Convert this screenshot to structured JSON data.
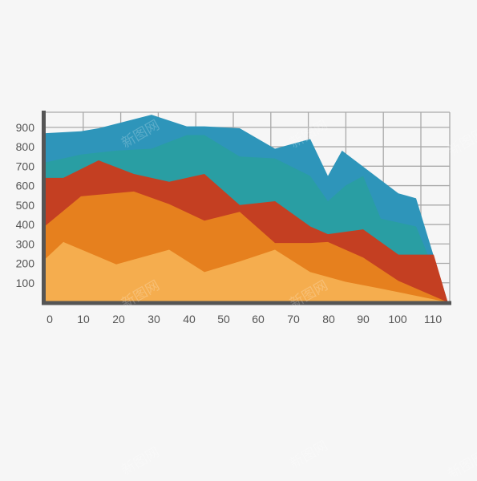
{
  "chart_data": {
    "type": "area",
    "stacked": false,
    "title": "",
    "xlabel": "",
    "ylabel": "",
    "xlim": [
      0,
      115
    ],
    "ylim": [
      0,
      1000
    ],
    "x_ticks": [
      0,
      10,
      20,
      30,
      40,
      50,
      60,
      70,
      80,
      90,
      100,
      110
    ],
    "x_tick_labels": [
      "0",
      "10",
      "20",
      "30",
      "40",
      "50",
      "60",
      "70",
      "80",
      "90",
      "100",
      "110"
    ],
    "y_ticks": [
      100,
      200,
      300,
      400,
      500,
      600,
      700,
      800,
      900
    ],
    "y_tick_labels": [
      "100",
      "200",
      "300",
      "400",
      "500",
      "600",
      "700",
      "800",
      "900"
    ],
    "grid": true,
    "legend": "none",
    "series": [
      {
        "color": "#2e95ba",
        "x": [
          0,
          10,
          15,
          30,
          40,
          45,
          55,
          65,
          75,
          80,
          84,
          100,
          105,
          114
        ],
        "y": [
          870,
          880,
          895,
          965,
          905,
          905,
          895,
          790,
          840,
          650,
          780,
          560,
          535,
          0
        ]
      },
      {
        "color": "#299ea3",
        "x": [
          0,
          10,
          20,
          30,
          40,
          45,
          55,
          65,
          75,
          80,
          85,
          90,
          95,
          105,
          114
        ],
        "y": [
          720,
          760,
          780,
          790,
          860,
          860,
          750,
          740,
          650,
          520,
          600,
          650,
          430,
          390,
          0
        ]
      },
      {
        "color": "#c43f22",
        "x": [
          0,
          5,
          15,
          25,
          35,
          45,
          55,
          65,
          75,
          80,
          90,
          95,
          100,
          110,
          114
        ],
        "y": [
          640,
          640,
          730,
          660,
          620,
          660,
          500,
          520,
          390,
          350,
          375,
          310,
          245,
          245,
          0
        ]
      },
      {
        "color": "#e6801e",
        "x": [
          0,
          10,
          25,
          35,
          45,
          55,
          65,
          75,
          80,
          90,
          100,
          114
        ],
        "y": [
          395,
          545,
          570,
          505,
          420,
          465,
          305,
          305,
          310,
          230,
          110,
          0
        ]
      },
      {
        "color": "#f5ad4e",
        "x": [
          0,
          5,
          20,
          35,
          45,
          55,
          65,
          75,
          85,
          95,
          114
        ],
        "y": [
          225,
          310,
          195,
          270,
          155,
          210,
          270,
          155,
          105,
          70,
          0
        ]
      }
    ]
  },
  "watermark": "新图网"
}
